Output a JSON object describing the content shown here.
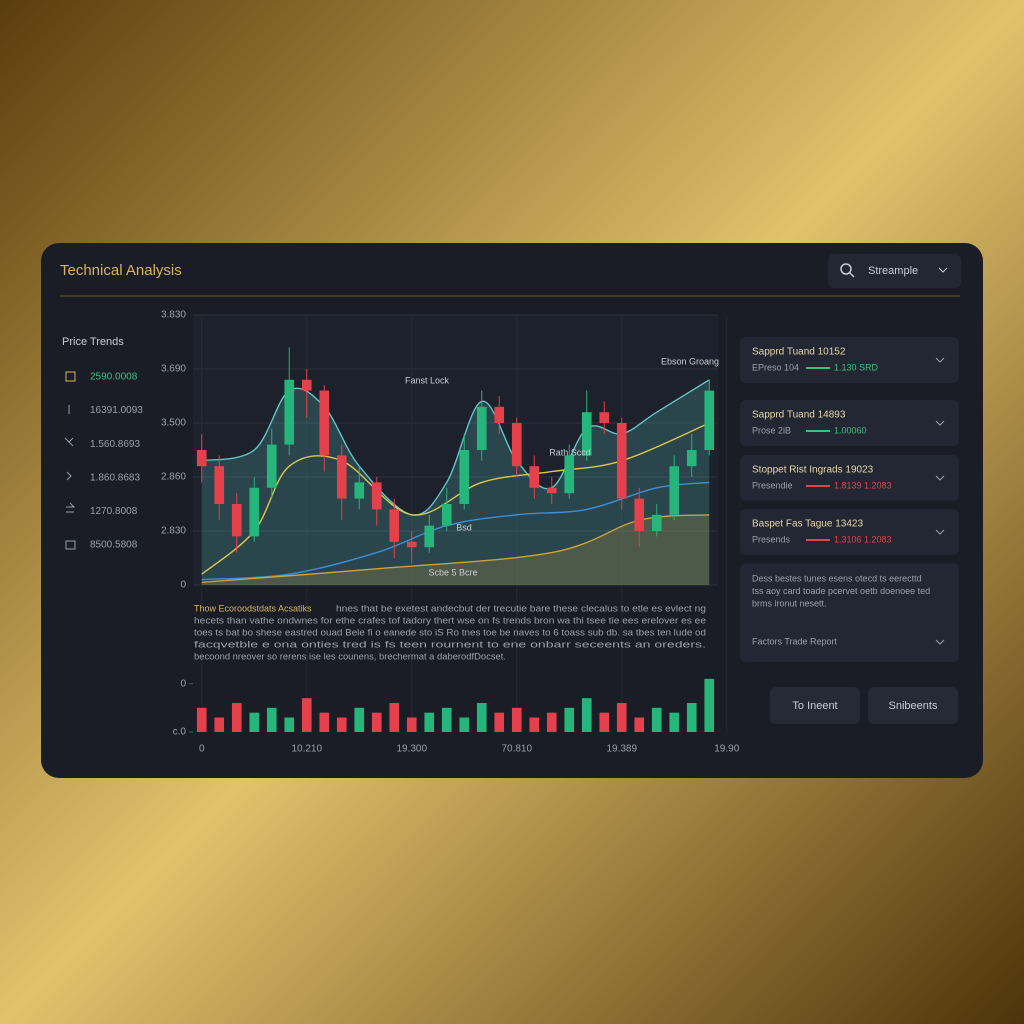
{
  "header": {
    "title": "Technical Analysis",
    "search": "Streample"
  },
  "sidebar": {
    "title": "Price Trends",
    "rows": [
      {
        "value": "2590.0008",
        "color": "#3fbf7f"
      },
      {
        "value": "16391.0093",
        "color": "#9aa0ab"
      },
      {
        "value": "1.560.8693",
        "color": "#9aa0ab"
      },
      {
        "value": "1.860.8683",
        "color": "#9aa0ab"
      },
      {
        "value": "1270.8008",
        "color": "#9aa0ab"
      },
      {
        "value": "8500.5808",
        "color": "#9aa0ab"
      }
    ]
  },
  "chart_data": {
    "type": "candlestick",
    "open": [
      2.5,
      2.2,
      1.5,
      0.9,
      1.8,
      2.6,
      3.8,
      3.6,
      2.4,
      1.6,
      1.9,
      1.4,
      0.8,
      0.7,
      1.1,
      1.5,
      2.5,
      3.3,
      3.0,
      2.2,
      1.8,
      1.7,
      2.4,
      3.2,
      3.0,
      1.6,
      1.0,
      1.3,
      2.2,
      2.5
    ],
    "high": [
      2.8,
      2.4,
      1.7,
      2.0,
      2.9,
      4.4,
      4.0,
      3.7,
      2.6,
      2.2,
      2.0,
      1.6,
      1.0,
      1.3,
      1.8,
      2.8,
      3.6,
      3.5,
      3.1,
      2.4,
      2.0,
      2.6,
      3.6,
      3.4,
      3.1,
      1.8,
      1.5,
      2.4,
      2.8,
      3.8
    ],
    "low": [
      1.9,
      1.2,
      0.6,
      0.8,
      1.6,
      2.4,
      3.1,
      2.1,
      1.2,
      1.4,
      1.1,
      0.5,
      0.4,
      0.6,
      1.0,
      1.4,
      2.3,
      2.8,
      2.0,
      1.6,
      1.5,
      1.6,
      2.3,
      2.8,
      1.4,
      0.7,
      0.9,
      1.2,
      2.0,
      2.4
    ],
    "close": [
      2.2,
      1.5,
      0.9,
      1.8,
      2.6,
      3.8,
      3.6,
      2.4,
      1.6,
      1.9,
      1.4,
      0.8,
      0.7,
      1.1,
      1.5,
      2.5,
      3.3,
      3.0,
      2.2,
      1.8,
      1.7,
      2.4,
      3.2,
      3.0,
      1.6,
      1.0,
      1.3,
      2.2,
      2.5,
      3.6
    ],
    "up_color": "#26b57a",
    "down_color": "#e5414d",
    "xlim": [
      -0.5,
      29.5
    ],
    "ylim": [
      0,
      5
    ],
    "yticks": [
      0,
      {
        "value": 1,
        "label": "2.830"
      },
      {
        "value": 2,
        "label": "2.860"
      },
      {
        "value": 3,
        "label": "3.500"
      },
      {
        "value": 4,
        "label": "3.690"
      },
      {
        "value": 5,
        "label": "3.830"
      }
    ],
    "xticks": [
      0,
      {
        "value": 6,
        "label": "10.210"
      },
      {
        "value": 12,
        "label": "19.300"
      },
      {
        "value": 18,
        "label": "70.810"
      },
      {
        "value": 24,
        "label": "19.389"
      },
      {
        "value": 30,
        "label": "19.90"
      }
    ],
    "grid": true,
    "overlays": [
      {
        "color": "#5fc7c9",
        "fill": true,
        "x": [
          0,
          3,
          5,
          7,
          9,
          12,
          14,
          16,
          18,
          20,
          22,
          24,
          26,
          29
        ],
        "values": [
          2.3,
          2.5,
          3.6,
          3.3,
          2.2,
          1.3,
          1.9,
          3.4,
          2.3,
          1.8,
          2.9,
          2.8,
          3.2,
          3.8
        ]
      },
      {
        "color": "#d9c94a",
        "fill": false,
        "x": [
          0,
          3,
          5,
          8,
          12,
          16,
          20,
          24,
          29
        ],
        "values": [
          0.2,
          1.0,
          2.2,
          2.3,
          1.3,
          1.9,
          2.1,
          2.3,
          3.0
        ]
      },
      {
        "color": "#3a8fd9",
        "fill": false,
        "x": [
          0,
          5,
          10,
          14,
          18,
          22,
          26,
          29
        ],
        "values": [
          0.1,
          0.2,
          0.6,
          1.1,
          1.3,
          1.4,
          1.8,
          1.9
        ]
      },
      {
        "color": "#c9a23a",
        "fill": true,
        "x": [
          0,
          10,
          20,
          25,
          29
        ],
        "values": [
          0.05,
          0.3,
          0.6,
          1.2,
          1.3
        ]
      }
    ],
    "annotations": [
      "Ebson Groang",
      "Fanst Lock",
      "Rath Sccd",
      "Bsd",
      "Scbe 5 Bcre"
    ],
    "volume": [
      0.5,
      0.3,
      0.6,
      0.4,
      0.5,
      0.3,
      0.7,
      0.4,
      0.3,
      0.5,
      0.4,
      0.6,
      0.3,
      0.4,
      0.5,
      0.3,
      0.6,
      0.4,
      0.5,
      0.3,
      0.4,
      0.5,
      0.7,
      0.4,
      0.6,
      0.3,
      0.5,
      0.4,
      0.6,
      1.1
    ],
    "volume_ylim": [
      0,
      1.2
    ],
    "volume_yticks": [
      {
        "value": 0,
        "label": "c.0"
      },
      {
        "value": 1,
        "label": "0"
      }
    ]
  },
  "notes": {
    "lead": "Thow Ecoroodstdats Acsatiks",
    "lines": [
      "hnes that be exetest andecbut der trecutie bare these clecalus to etle es evlect ng",
      "hecets than vathe ondwnes for ethe crafes tof tadory thert wse on fs trends bron wa thi tsee tie ees erelover es ee",
      "toes ts bat bo shese eastred ouad Bele fi o eanede sto iS Ro tnes toe be naves to 6 toass sub db. sa tbes ten lude od",
      "facqvetble e ona onties tred is fs teen rournent to ene onbarr seceents an oreders.",
      "becoond nreover so rerens ise les counens, brechermat a daberodfDocset."
    ]
  },
  "cards": [
    {
      "title": "Sapprd Tuand 10152",
      "label": "EPreso 104",
      "value": "1.130 SRD",
      "color": "#3fbf7f"
    },
    {
      "title": "Sapprd Tuand 14893",
      "label": "Prose 2iB",
      "value": "1.00060",
      "color": "#3fbf7f"
    },
    {
      "title": "Stoppet Rist Ingrads 19023",
      "label": "Presendie",
      "value": "1.8139 1.2083",
      "color": "#e5414d"
    },
    {
      "title": "Baspet Fas Tague 13423",
      "label": "Presends",
      "value": "1.3106 1.2083",
      "color": "#e5414d"
    }
  ],
  "info": {
    "lines": [
      "Dess bestes tunes esens otecd ts eerecttd",
      "tss aoy card toade pcervet oetb doenoee ted",
      "brms ironut nesett."
    ],
    "link": "Factors Trade Report"
  },
  "buttons": [
    "To Ineent",
    "Snibeents"
  ]
}
